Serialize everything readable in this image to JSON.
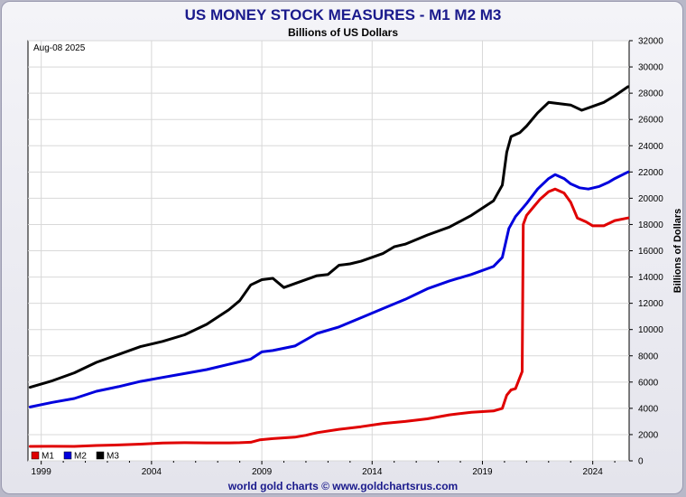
{
  "title": "US MONEY STOCK MEASURES - M1 M2 M3",
  "subtitle": "Billions of US Dollars",
  "date_label": "Aug-08  2025",
  "credit": "world gold charts © www.goldchartsrus.com",
  "colors": {
    "M1": "#e00000",
    "M2": "#0000dd",
    "M3": "#000000",
    "title": "#1a1a8c"
  },
  "chart_data": {
    "type": "line",
    "title": "US MONEY STOCK MEASURES - M1 M2 M3",
    "ylabel": "Billions of Dollars",
    "xlim": [
      1998.4,
      2025.65
    ],
    "ylim": [
      0,
      32000
    ],
    "y_axis_side": "right",
    "x_ticks": [
      1999,
      2004,
      2009,
      2014,
      2019,
      2024
    ],
    "x_tick_labels": [
      "1999",
      "2004",
      "2009",
      "2014",
      "2019",
      "2024"
    ],
    "y_ticks": [
      0,
      2000,
      4000,
      6000,
      8000,
      10000,
      12000,
      14000,
      16000,
      18000,
      20000,
      22000,
      24000,
      26000,
      28000,
      30000,
      32000
    ],
    "y_tick_labels": [
      "0",
      "2000",
      "4000",
      "6000",
      "8000",
      "10000",
      "12000",
      "14000",
      "16000",
      "18000",
      "20000",
      "22000",
      "24000",
      "26000",
      "28000",
      "30000",
      "32000"
    ],
    "grid": true,
    "legend": "bottom-left",
    "series": [
      {
        "name": "M1",
        "color": "#e00000",
        "x": [
          1998.5,
          1999.5,
          2000.5,
          2001.5,
          2002.5,
          2003.5,
          2004.5,
          2005.5,
          2006.5,
          2007.5,
          2008.0,
          2008.5,
          2008.9,
          2009.5,
          2010.5,
          2011.0,
          2011.5,
          2012.5,
          2013.5,
          2014.5,
          2015.5,
          2016.5,
          2017.5,
          2018.5,
          2019.5,
          2019.9,
          2020.1,
          2020.3,
          2020.5,
          2020.8,
          2020.85,
          2021.0,
          2021.3,
          2021.6,
          2022.0,
          2022.3,
          2022.7,
          2023.0,
          2023.3,
          2023.7,
          2024.0,
          2024.5,
          2025.0,
          2025.6
        ],
        "y": [
          1100,
          1110,
          1100,
          1170,
          1210,
          1270,
          1360,
          1380,
          1370,
          1370,
          1380,
          1420,
          1600,
          1690,
          1800,
          1950,
          2150,
          2400,
          2600,
          2850,
          3000,
          3200,
          3500,
          3700,
          3800,
          4000,
          5000,
          5400,
          5500,
          6800,
          18000,
          18700,
          19300,
          19900,
          20500,
          20700,
          20400,
          19700,
          18500,
          18200,
          17900,
          17900,
          18300,
          18500
        ]
      },
      {
        "name": "M2",
        "color": "#0000dd",
        "x": [
          1998.5,
          1999.5,
          2000.5,
          2001.5,
          2002.5,
          2003.5,
          2004.5,
          2005.5,
          2006.5,
          2007.5,
          2008.5,
          2009.0,
          2009.5,
          2010.5,
          2011.5,
          2012.5,
          2013.5,
          2014.5,
          2015.5,
          2016.5,
          2017.5,
          2018.5,
          2019.5,
          2019.9,
          2020.2,
          2020.5,
          2021.0,
          2021.5,
          2022.0,
          2022.3,
          2022.7,
          2023.0,
          2023.4,
          2023.8,
          2024.3,
          2024.7,
          2025.0,
          2025.6
        ],
        "y": [
          4100,
          4450,
          4750,
          5300,
          5650,
          6050,
          6350,
          6650,
          6950,
          7350,
          7750,
          8300,
          8400,
          8750,
          9700,
          10200,
          10900,
          11600,
          12300,
          13100,
          13700,
          14200,
          14800,
          15500,
          17700,
          18600,
          19600,
          20700,
          21500,
          21800,
          21500,
          21100,
          20800,
          20700,
          20900,
          21200,
          21500,
          22000
        ]
      },
      {
        "name": "M3",
        "color": "#000000",
        "x": [
          1998.5,
          1999.5,
          2000.5,
          2001.5,
          2002.5,
          2003.5,
          2004.5,
          2005.5,
          2006.5,
          2007.5,
          2008.0,
          2008.5,
          2009.0,
          2009.5,
          2010.0,
          2010.5,
          2011.5,
          2012.0,
          2012.5,
          2013.0,
          2013.5,
          2014.5,
          2015.0,
          2015.5,
          2016.5,
          2017.5,
          2018.5,
          2019.5,
          2019.9,
          2020.1,
          2020.3,
          2020.7,
          2021.0,
          2021.5,
          2022.0,
          2022.5,
          2023.0,
          2023.5,
          2024.0,
          2024.5,
          2025.0,
          2025.6
        ],
        "y": [
          5600,
          6100,
          6700,
          7500,
          8100,
          8700,
          9100,
          9600,
          10400,
          11500,
          12200,
          13400,
          13800,
          13900,
          13200,
          13500,
          14100,
          14200,
          14900,
          15000,
          15200,
          15800,
          16300,
          16500,
          17200,
          17800,
          18700,
          19800,
          21000,
          23500,
          24700,
          25000,
          25500,
          26500,
          27300,
          27200,
          27100,
          26700,
          27000,
          27300,
          27800,
          28500
        ]
      }
    ]
  }
}
